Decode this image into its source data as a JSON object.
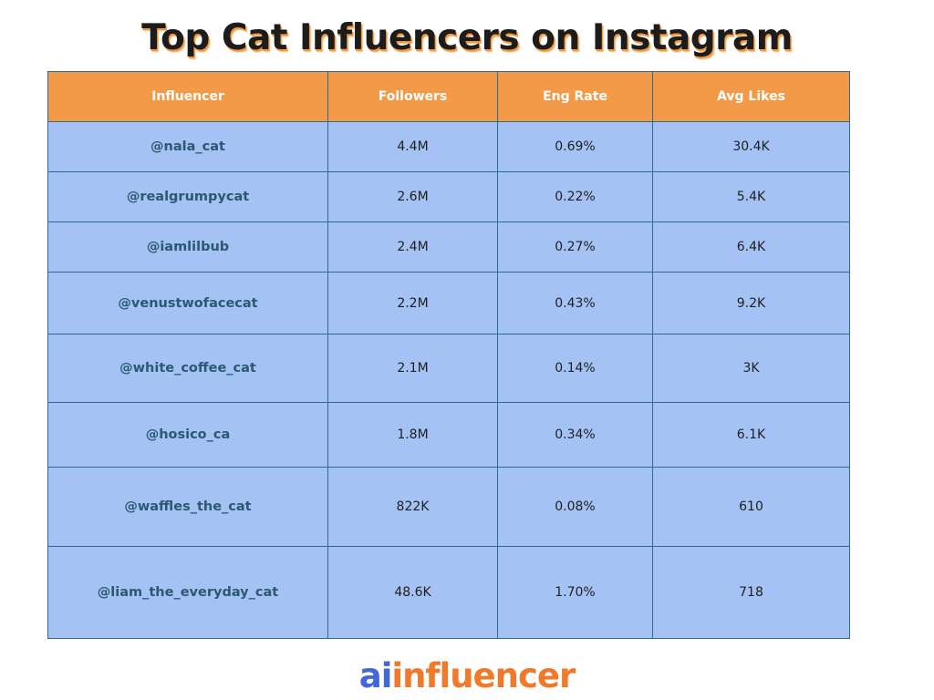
{
  "title": "Top Cat Influencers on Instagram",
  "chart_data": {
    "type": "table",
    "title": "Top Cat Influencers on Instagram",
    "columns": [
      "Influencer",
      "Followers",
      "Eng Rate",
      "Avg Likes"
    ],
    "rows": [
      [
        "@nala_cat",
        "4.4M",
        "0.69%",
        "30.4K"
      ],
      [
        "@realgrumpycat",
        "2.6M",
        "0.22%",
        "5.4K"
      ],
      [
        "@iamlilbub",
        "2.4M",
        "0.27%",
        "6.4K"
      ],
      [
        "@venustwofacecat",
        "2.2M",
        "0.43%",
        "9.2K"
      ],
      [
        "@white_coffee_cat",
        "2.1M",
        "0.14%",
        "3K"
      ],
      [
        "@hosico_ca",
        "1.8M",
        "0.34%",
        "6.1K"
      ],
      [
        "@waffles_the_cat",
        "822K",
        "0.08%",
        "610"
      ],
      [
        "@liam_the_everyday_cat",
        "48.6K",
        "1.70%",
        "718"
      ]
    ]
  },
  "brand": {
    "prefix": "ai",
    "suffix": "influencer"
  },
  "colors": {
    "header_bg": "#f29a48",
    "header_text": "#ffffff",
    "cell_bg": "#a4c2f4",
    "border": "#2f6a8f",
    "influencer_text": "#2a5970",
    "brand_ai": "#4267d8",
    "brand_rest": "#f07a2b"
  }
}
